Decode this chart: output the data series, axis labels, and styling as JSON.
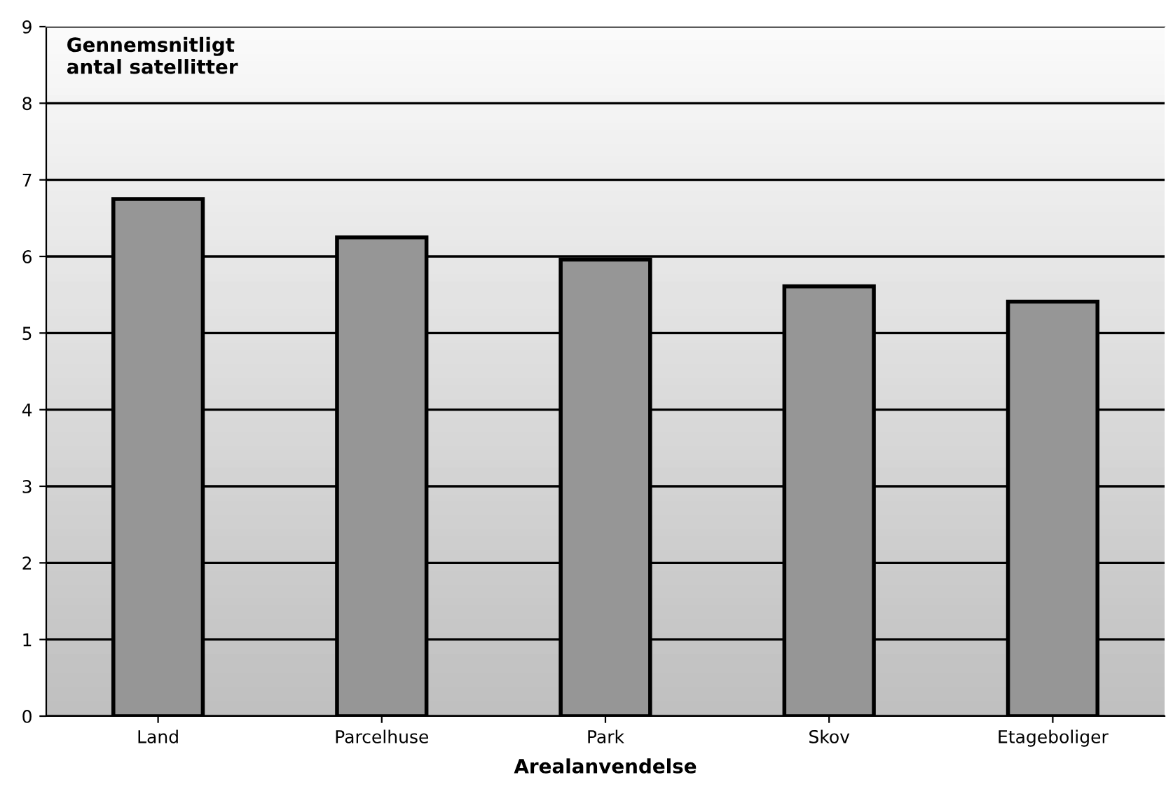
{
  "chart_data": {
    "type": "bar",
    "ylabel": "Gennemsnitligt\nantal satellitter",
    "xlabel": "Arealanvendelse",
    "categories": [
      "Land",
      "Parcelhuse",
      "Park",
      "Skov",
      "Etageboliger"
    ],
    "values": [
      6.75,
      6.25,
      5.96,
      5.61,
      5.41
    ],
    "color": "#969696",
    "ylim": [
      0,
      9
    ],
    "yticks": [
      0,
      1,
      2,
      3,
      4,
      5,
      6,
      7,
      8,
      9
    ],
    "grid": "y",
    "legend": false
  }
}
